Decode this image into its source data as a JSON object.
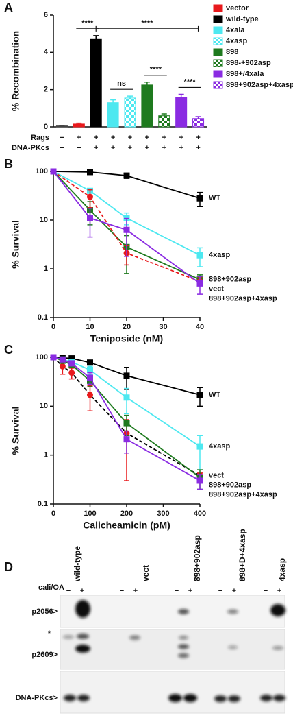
{
  "chart_data": [
    {
      "type": "bar",
      "panel": "A",
      "y_label": "% Recombination",
      "ylim": [
        0,
        6
      ],
      "yticks": [
        0,
        2,
        4,
        6
      ],
      "values": [
        0.05,
        0.15,
        4.7,
        1.3,
        1.55,
        2.25,
        0.6,
        1.6,
        0.45
      ],
      "errors": [
        0.03,
        0.05,
        0.2,
        0.15,
        0.1,
        0.15,
        0.1,
        0.15,
        0.1
      ],
      "colors": [
        "#444444",
        "#e8191c",
        "#000000",
        "#4de8f0",
        "#4de8f0",
        "#1e7a1e",
        "#1e7a1e",
        "#8a2be2",
        "#8a2be2"
      ],
      "checker": [
        false,
        false,
        false,
        false,
        true,
        false,
        true,
        false,
        true
      ],
      "conditions": [
        {
          "label": "Rags",
          "signs": [
            "−",
            "+",
            "+",
            "+",
            "+",
            "+",
            "+",
            "+",
            "+"
          ]
        },
        {
          "label": "DNA-PKcs",
          "signs": [
            "−",
            "−",
            "+",
            "+",
            "+",
            "+",
            "+",
            "+",
            "+"
          ]
        }
      ],
      "significance": [
        {
          "from": 1,
          "to": 2,
          "label": "****"
        },
        {
          "from": 3,
          "to": 4,
          "label": "ns"
        },
        {
          "from": 5,
          "to": 6,
          "label": "****"
        },
        {
          "from": 7,
          "to": 8,
          "label": "****"
        },
        {
          "from": 2,
          "to": 8,
          "label": "****"
        }
      ],
      "legend": [
        {
          "name": "vector",
          "color": "#e8191c"
        },
        {
          "name": "wild-type",
          "color": "#000000"
        },
        {
          "name": "4xala",
          "color": "#4de8f0"
        },
        {
          "name": "4xasp",
          "color": "#4de8f0",
          "pattern": "checker"
        },
        {
          "name": "898",
          "color": "#1e7a1e"
        },
        {
          "name": "898-+902asp",
          "color": "#1e7a1e",
          "pattern": "checker"
        },
        {
          "name": "898+/4xala",
          "color": "#8a2be2"
        },
        {
          "name": "898+902asp+4xasp",
          "color": "#8a2be2",
          "pattern": "checker"
        }
      ]
    },
    {
      "type": "line",
      "panel": "B",
      "y_label": "% Survival",
      "x_label": "Teniposide (nM)",
      "log_y": true,
      "xlim": [
        0,
        40
      ],
      "xticks": [
        0,
        10,
        20,
        30,
        40
      ],
      "ylim": [
        0.1,
        100
      ],
      "yticks": [
        0.1,
        1,
        10,
        100
      ],
      "x": [
        0,
        10,
        20,
        40
      ],
      "series": [
        {
          "name": "WT",
          "color": "#000000",
          "marker": "square",
          "values": [
            100,
            97,
            82,
            28
          ],
          "errors": [
            0,
            5,
            10,
            9
          ]
        },
        {
          "name": "4xasp",
          "color": "#4de8f0",
          "marker": "square",
          "values": [
            100,
            40,
            11,
            1.9
          ],
          "errors": [
            0,
            4,
            3,
            0.8
          ]
        },
        {
          "name": "898+902asp",
          "color": "#1e7a1e",
          "marker": "square",
          "values": [
            100,
            16,
            2.8,
            0.6
          ],
          "errors": [
            0,
            8,
            2,
            0.15
          ]
        },
        {
          "name": "vect",
          "color": "#e8191c",
          "marker": "circle",
          "dash": true,
          "values": [
            100,
            30,
            2.1,
            0.55
          ],
          "errors": [
            0,
            12,
            0.9,
            0.1
          ]
        },
        {
          "name": "898+902asp+4xasp",
          "color": "#8a2be2",
          "marker": "square",
          "values": [
            100,
            11,
            6.3,
            0.5
          ],
          "errors": [
            0,
            6.5,
            4.5,
            0.2
          ]
        }
      ]
    },
    {
      "type": "line",
      "panel": "C",
      "y_label": "% Survival",
      "x_label": "Calicheamicin (pM)",
      "log_y": true,
      "xlim": [
        0,
        400
      ],
      "xticks": [
        0,
        100,
        200,
        300,
        400
      ],
      "ylim": [
        0.1,
        100
      ],
      "yticks": [
        0.1,
        1,
        10,
        100
      ],
      "x": [
        0,
        25,
        50,
        100,
        200,
        400
      ],
      "series": [
        {
          "name": "WT",
          "color": "#000000",
          "marker": "square",
          "values": [
            100,
            97,
            95,
            78,
            42,
            17
          ],
          "errors": [
            0,
            5,
            5,
            5,
            20,
            7
          ]
        },
        {
          "name": "4xasp",
          "color": "#4de8f0",
          "marker": "square",
          "values": [
            100,
            90,
            80,
            55,
            15,
            1.5
          ],
          "errors": [
            0,
            5,
            5,
            10,
            8,
            1
          ]
        },
        {
          "name": "vect",
          "color": "#e8191c",
          "line_color": "#000000",
          "marker": "circle",
          "dash": true,
          "values": [
            100,
            65,
            48,
            17,
            2.8,
            0.38
          ],
          "errors": [
            0,
            20,
            12,
            9,
            2.5,
            0.05
          ]
        },
        {
          "name": "898+902asp",
          "color": "#1e7a1e",
          "marker": "square",
          "values": [
            100,
            85,
            70,
            33,
            4.5,
            0.35
          ],
          "errors": [
            0,
            10,
            8,
            8,
            2,
            0.15
          ]
        },
        {
          "name": "898+902asp+4xasp",
          "color": "#8a2be2",
          "marker": "square",
          "values": [
            100,
            90,
            75,
            38,
            2.1,
            0.3
          ],
          "errors": [
            0,
            5,
            8,
            10,
            1,
            0.1
          ]
        }
      ]
    }
  ],
  "blot": {
    "panel": "D",
    "treatment": "cali/OA",
    "signs": [
      "−",
      "+"
    ],
    "lanes": [
      "wild-type",
      "vect",
      "898+902asp",
      "898+D+4xasp",
      "4xasp"
    ],
    "rows": [
      "p2056>",
      "p2609>",
      "DNA-PKcs>"
    ],
    "marker": "*"
  }
}
